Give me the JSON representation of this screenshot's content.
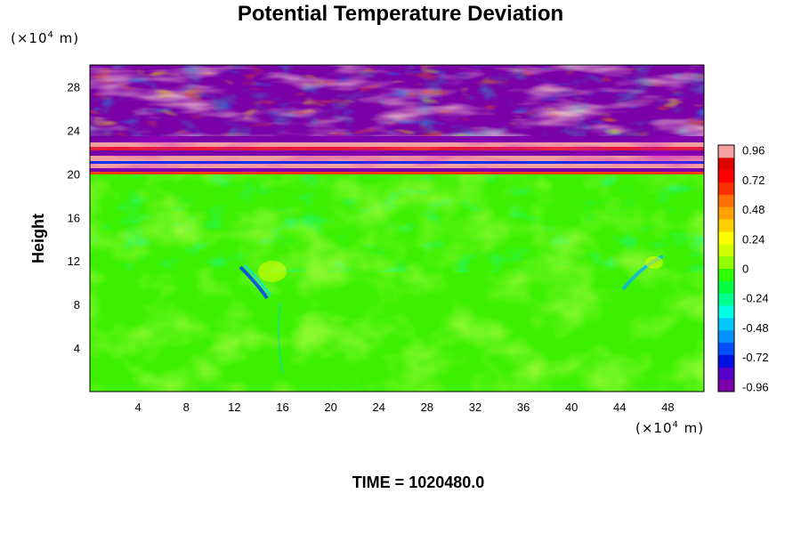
{
  "chart_data": {
    "type": "heatmap",
    "title": "Potential Temperature Deviation",
    "ylabel": "Height",
    "xlabel": "",
    "y_unit_prefix": "(×10",
    "y_unit_exp": "4",
    "y_unit_suffix": " m)",
    "x_unit_prefix": "(×10",
    "x_unit_exp": "4",
    "x_unit_suffix": " m)",
    "xlim": [
      0,
      51
    ],
    "ylim": [
      0,
      30
    ],
    "xticks": [
      4,
      8,
      12,
      16,
      20,
      24,
      28,
      32,
      36,
      40,
      44,
      48
    ],
    "yticks": [
      4,
      8,
      12,
      16,
      20,
      24,
      28
    ],
    "colorbar_ticks": [
      "0.96",
      "0.72",
      "0.48",
      "0.24",
      "0",
      "-0.24",
      "-0.48",
      "-0.72",
      "-0.96"
    ],
    "colorbar_range": [
      -1.0,
      1.0
    ],
    "colorbar_colors": [
      "#7a00a8",
      "#5200c8",
      "#0010e0",
      "#0050ff",
      "#0090ff",
      "#00c8ff",
      "#00ffe0",
      "#00ff90",
      "#00ff40",
      "#30ff00",
      "#90ff00",
      "#d0ff00",
      "#ffff00",
      "#ffd000",
      "#ffa000",
      "#ff7000",
      "#ff3000",
      "#ff0000",
      "#e00000",
      "#f5a0a0"
    ],
    "layers": [
      {
        "y_range": [
          0,
          20
        ],
        "description_value": 0.0
      },
      {
        "y_range": [
          20,
          23
        ],
        "description_value": "alternating -0.96 / 0.96 bands"
      },
      {
        "y_range": [
          23,
          30
        ],
        "description_value": "turbulent -0.96 to 0.96"
      }
    ]
  },
  "footer": {
    "time_text": "TIME = 1020480.0"
  }
}
